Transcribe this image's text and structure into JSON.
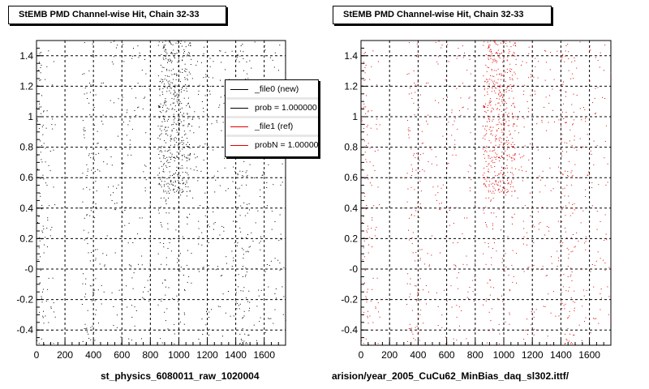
{
  "chart_data": [
    {
      "type": "scatter",
      "title": "StEMB PMD Channel-wise Hit, Chain 32-33",
      "xlabel": "st_physics_6080011_raw_1020004",
      "ylabel": "",
      "xlim": [
        0,
        1750
      ],
      "ylim": [
        -0.5,
        1.5
      ],
      "xticks": [
        0,
        200,
        400,
        600,
        800,
        1000,
        1200,
        1400,
        1600
      ],
      "yticks": [
        -0.4,
        -0.2,
        0,
        0.2,
        0.4,
        0.6,
        0.8,
        1,
        1.2,
        1.4
      ],
      "ytick_labels": [
        "-0.4",
        "-0.2",
        "-0",
        "0.2",
        "0.4",
        "0.6",
        "0.8",
        "1",
        "1.2",
        "1.4"
      ],
      "grid": true,
      "marker_color": "#000000",
      "legend": {
        "placement": "top-right",
        "entries": [
          {
            "label": "_file0 (new)",
            "color": "#000000"
          },
          {
            "label": "prob = 1.000000",
            "color": "#000000"
          },
          {
            "label": "_file1 (ref)",
            "color": "#e00000"
          },
          {
            "label": "probN = 1.000000",
            "color": "#e00000"
          }
        ]
      },
      "density_bands": [
        {
          "x": [
            0,
            50
          ],
          "y": [
            -0.5,
            1.5
          ],
          "density": 0.9
        },
        {
          "x": [
            50,
            130
          ],
          "y": [
            -0.5,
            1.5
          ],
          "density": 0.35
        },
        {
          "x": [
            300,
            420
          ],
          "y": [
            -0.5,
            1.5
          ],
          "density": 0.55
        },
        {
          "x": [
            420,
            800
          ],
          "y": [
            -0.5,
            1.5
          ],
          "density": 0.25
        },
        {
          "x": [
            850,
            1080
          ],
          "y": [
            0.5,
            1.5
          ],
          "density": 2.6
        },
        {
          "x": [
            850,
            1080
          ],
          "y": [
            -0.5,
            0.5
          ],
          "density": 0.4
        },
        {
          "x": [
            1080,
            1750
          ],
          "y": [
            -0.5,
            1.5
          ],
          "density": 0.28
        },
        {
          "x": [
            1400,
            1500
          ],
          "y": [
            -0.5,
            1.5
          ],
          "density": 0.55
        }
      ]
    },
    {
      "type": "scatter",
      "title": "StEMB PMD Channel-wise Hit, Chain 32-33",
      "xlabel": "arision/year_2005_CuCu62_MinBias_daq_sl302.ittf/",
      "ylabel": "",
      "xlim": [
        0,
        1750
      ],
      "ylim": [
        -0.5,
        1.5
      ],
      "xticks": [
        0,
        200,
        400,
        600,
        800,
        1000,
        1200,
        1400,
        1600
      ],
      "yticks": [
        -0.4,
        -0.2,
        0,
        0.2,
        0.4,
        0.6,
        0.8,
        1,
        1.2,
        1.4
      ],
      "ytick_labels": [
        "-0.4",
        "-0.2",
        "-0",
        "0.2",
        "0.4",
        "0.6",
        "0.8",
        "1",
        "1.2",
        "1.4"
      ],
      "grid": true,
      "marker_color": "#e00000",
      "density_bands": [
        {
          "x": [
            0,
            50
          ],
          "y": [
            -0.5,
            1.5
          ],
          "density": 0.9
        },
        {
          "x": [
            50,
            130
          ],
          "y": [
            -0.5,
            1.5
          ],
          "density": 0.35
        },
        {
          "x": [
            300,
            420
          ],
          "y": [
            -0.5,
            1.5
          ],
          "density": 0.55
        },
        {
          "x": [
            420,
            800
          ],
          "y": [
            -0.5,
            1.5
          ],
          "density": 0.25
        },
        {
          "x": [
            850,
            1080
          ],
          "y": [
            0.5,
            1.5
          ],
          "density": 2.6
        },
        {
          "x": [
            850,
            1080
          ],
          "y": [
            -0.5,
            0.5
          ],
          "density": 0.4
        },
        {
          "x": [
            1080,
            1750
          ],
          "y": [
            -0.5,
            1.5
          ],
          "density": 0.28
        },
        {
          "x": [
            1400,
            1500
          ],
          "y": [
            -0.5,
            1.5
          ],
          "density": 0.55
        }
      ]
    }
  ]
}
